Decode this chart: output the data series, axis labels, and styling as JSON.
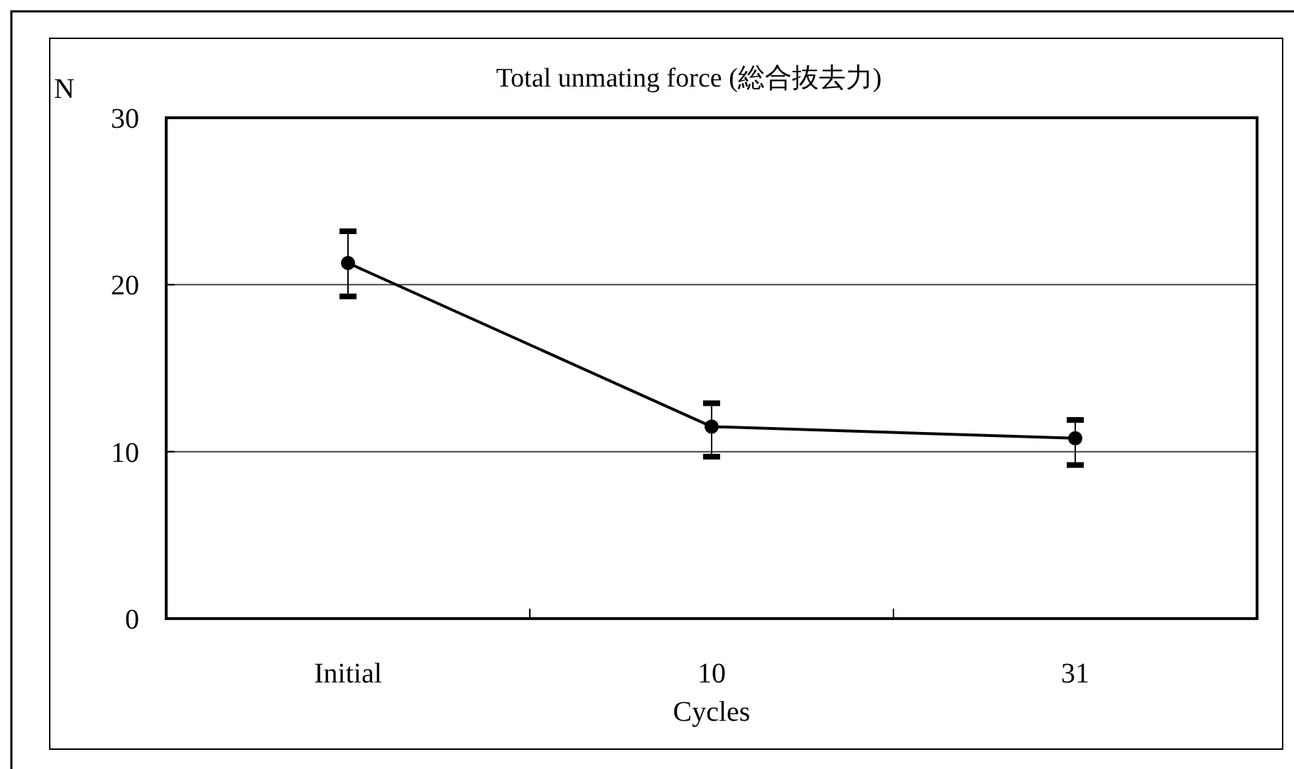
{
  "chart_data": {
    "type": "line",
    "title": "Total unmating force (総合抜去力)",
    "xlabel": "Cycles",
    "ylabel": "N",
    "categories": [
      "Initial",
      "10",
      "31"
    ],
    "series": [
      {
        "color": "#000000",
        "values": [
          21.3,
          11.5,
          10.8
        ],
        "errors": [
          [
            19.3,
            23.2
          ],
          [
            9.7,
            12.9
          ],
          [
            9.2,
            11.9
          ]
        ]
      }
    ],
    "ylim": [
      0,
      30
    ],
    "yticks": [
      0,
      10,
      20,
      30
    ],
    "grid": "y",
    "marker": "circle",
    "line_style": "solid"
  }
}
